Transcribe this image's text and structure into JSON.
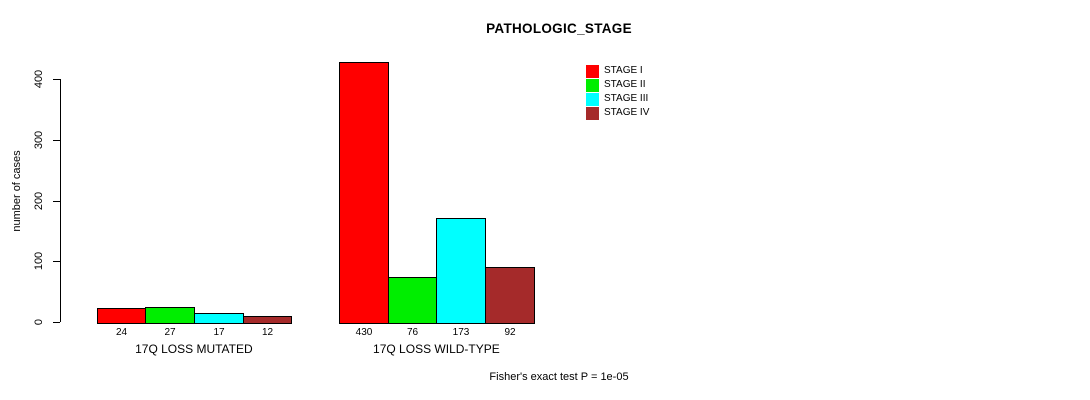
{
  "chart_data": {
    "type": "bar",
    "title": "PATHOLOGIC_STAGE",
    "ylabel": "number of cases",
    "xlabel": "",
    "categories": [
      "17Q LOSS MUTATED",
      "17Q LOSS WILD-TYPE"
    ],
    "series": [
      {
        "name": "STAGE I",
        "color": "#ff0000",
        "values": [
          24,
          430
        ]
      },
      {
        "name": "STAGE II",
        "color": "#00ee00",
        "values": [
          27,
          76
        ]
      },
      {
        "name": "STAGE III",
        "color": "#00ffff",
        "values": [
          17,
          173
        ]
      },
      {
        "name": "STAGE IV",
        "color": "#a52a2a",
        "values": [
          12,
          92
        ]
      }
    ],
    "yticks": [
      0,
      100,
      200,
      300,
      400
    ],
    "ylim": [
      0,
      443
    ],
    "grid": false,
    "bar_value_labels": true,
    "legend_position": "top-right",
    "annotation": "Fisher's exact test P = 1e-05"
  }
}
